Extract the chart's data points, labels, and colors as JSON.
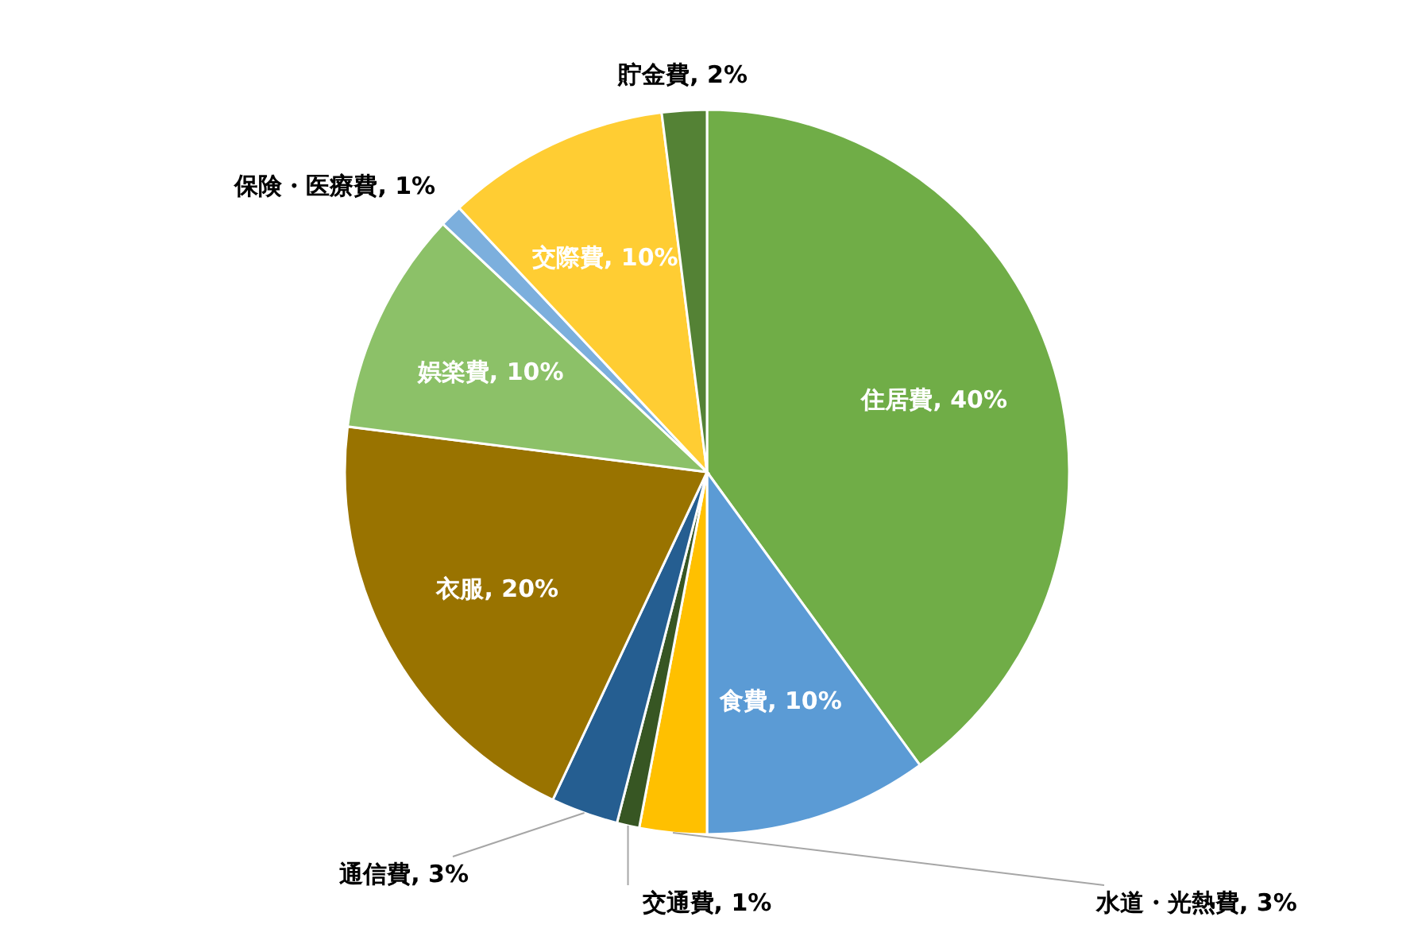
{
  "chart_data": {
    "type": "pie",
    "categories": [
      "住居費",
      "食費",
      "水道・光熱費",
      "交通費",
      "通信費",
      "衣服",
      "娯楽費",
      "保険・医療費",
      "交際費",
      "貯金費"
    ],
    "values": [
      40,
      10,
      3,
      1,
      3,
      20,
      10,
      1,
      10,
      2
    ],
    "value_labels": [
      "40%",
      "10%",
      "3%",
      "1%",
      "3%",
      "20%",
      "10%",
      "1%",
      "10%",
      "2%"
    ],
    "colors": [
      "#70ad47",
      "#5b9bd5",
      "#ffc000",
      "#375623",
      "#255e91",
      "#997300",
      "#8cc168",
      "#7cafdd",
      "#ffcd33",
      "#548235"
    ]
  }
}
